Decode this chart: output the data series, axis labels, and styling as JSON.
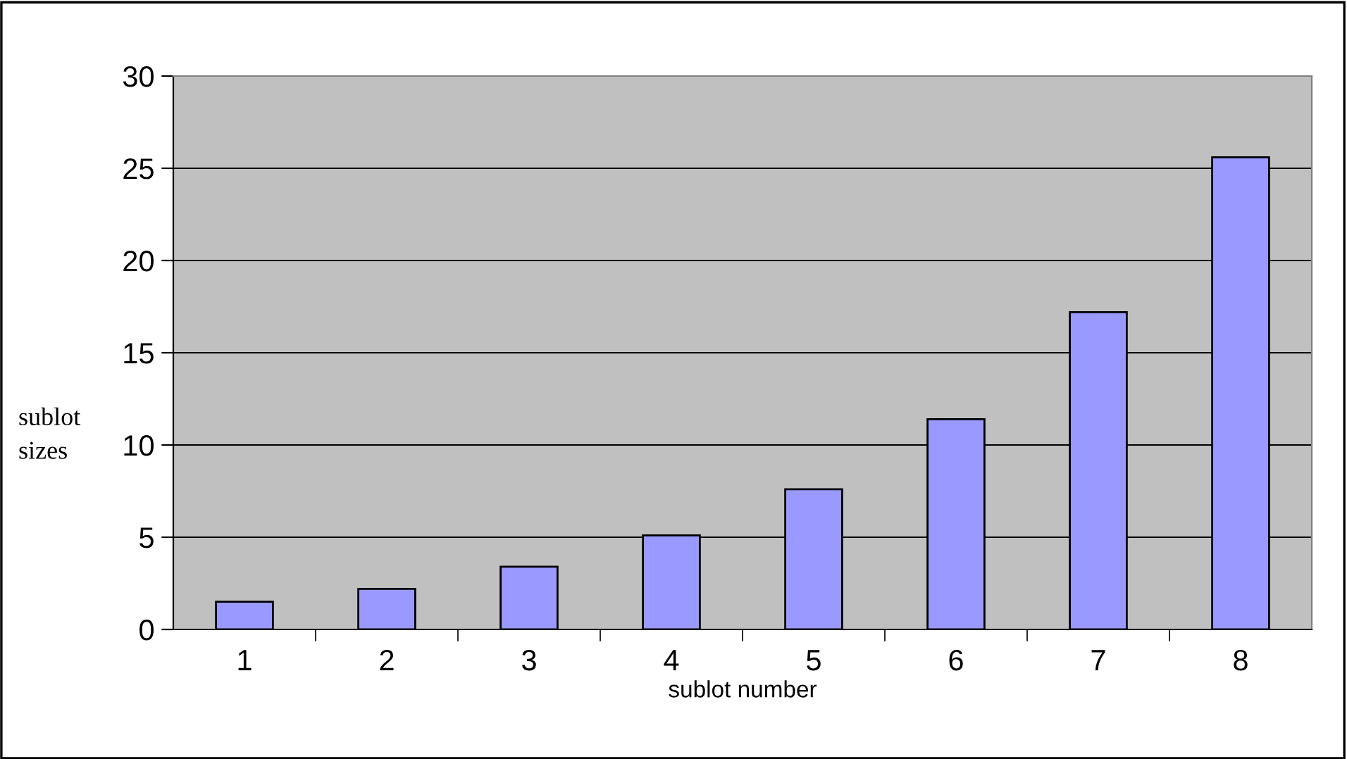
{
  "chart_data": {
    "type": "bar",
    "xlabel": "sublot number",
    "ylabel": "sublot\nsizes",
    "categories": [
      "1",
      "2",
      "3",
      "4",
      "5",
      "6",
      "7",
      "8"
    ],
    "values": [
      1.5,
      2.2,
      3.4,
      5.1,
      7.6,
      11.4,
      17.2,
      25.6
    ],
    "color": "#9999ff",
    "ylim": [
      0,
      30
    ],
    "yticks": [
      0,
      5,
      10,
      15,
      20,
      25,
      30
    ],
    "grid": "y",
    "legend": false
  }
}
